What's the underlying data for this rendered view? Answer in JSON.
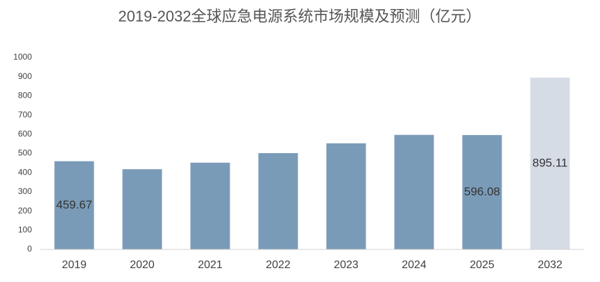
{
  "chart_data": {
    "type": "bar",
    "title": "2019-2032全球应急电源系统市场规模及预测（亿元）",
    "categories": [
      "2019",
      "2020",
      "2021",
      "2022",
      "2023",
      "2024",
      "2025",
      "2032"
    ],
    "values": [
      459.67,
      418,
      452,
      502,
      553,
      597,
      596.08,
      895.11
    ],
    "value_labels": [
      "459.67",
      null,
      null,
      null,
      null,
      null,
      "596.08",
      "895.11"
    ],
    "colors": [
      "#7a9bb8",
      "#7a9bb8",
      "#7a9bb8",
      "#7a9bb8",
      "#7a9bb8",
      "#7a9bb8",
      "#7a9bb8",
      "#d6dce6"
    ],
    "ylim": [
      0,
      1000
    ],
    "yticks": [
      0,
      100,
      200,
      300,
      400,
      500,
      600,
      700,
      800,
      900,
      1000
    ],
    "grid": false
  }
}
